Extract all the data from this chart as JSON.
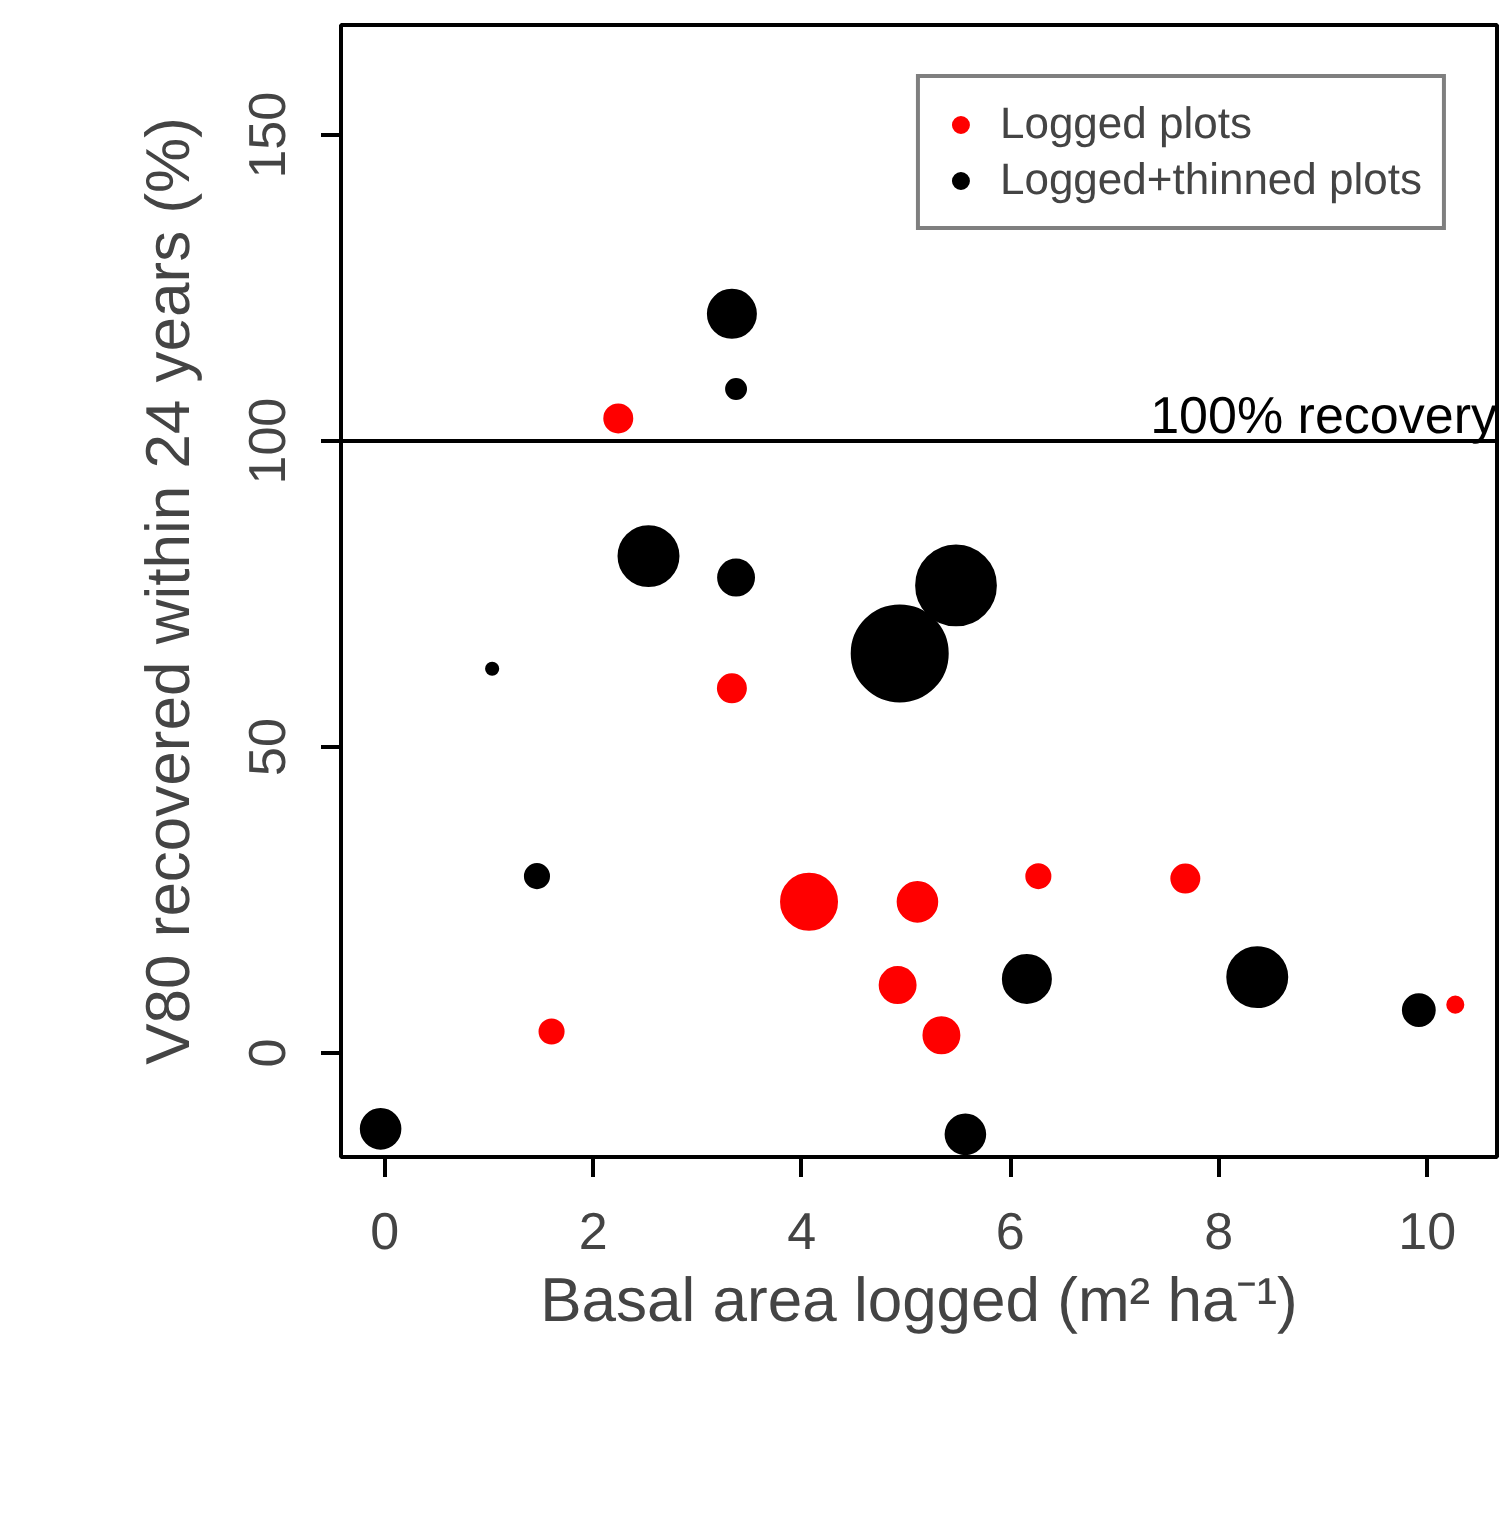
{
  "chart_data": {
    "type": "bubble",
    "xlabel": "Basal area logged (m² ha⁻¹)",
    "ylabel": "V80 recovered within 24 years (%)",
    "xlim": [
      -0.42,
      10.67
    ],
    "ylim": [
      -17,
      168
    ],
    "xticks": [
      0,
      2,
      4,
      6,
      8,
      10
    ],
    "yticks": [
      0,
      50,
      100,
      150
    ],
    "grid": false,
    "legend": "top right",
    "marker": "circle",
    "ref_lines": [
      {
        "axis": "y",
        "value": 100,
        "label": "100% recovery",
        "color": "#000000"
      }
    ],
    "series": [
      {
        "name": "Logged plots",
        "color": "#ff0000",
        "x": [
          2.24,
          3.33,
          1.6,
          4.07,
          5.11,
          4.92,
          5.34,
          6.27,
          7.68,
          10.27
        ],
        "values": [
          103.7,
          59.6,
          3.5,
          24.7,
          24.7,
          11.1,
          2.9,
          28.9,
          28.5,
          7.9
        ],
        "sizes": [
          0.085,
          0.085,
          0.063,
          0.34,
          0.17,
          0.14,
          0.14,
          0.063,
          0.085,
          0.028
        ]
      },
      {
        "name": "Logged+thinned plots",
        "color": "#000000",
        "x": [
          3.33,
          3.37,
          2.53,
          3.37,
          5.48,
          4.94,
          1.03,
          1.46,
          6.16,
          8.37,
          9.92,
          -0.04,
          5.57
        ],
        "values": [
          120.8,
          108.5,
          81.2,
          77.7,
          76.4,
          65.3,
          62.8,
          28.9,
          12.1,
          12.4,
          7.0,
          -12.4,
          -13.3
        ],
        "sizes": [
          0.25,
          0.043,
          0.39,
          0.14,
          0.69,
          1,
          0.016,
          0.063,
          0.25,
          0.39,
          0.11,
          0.17,
          0.17
        ]
      }
    ]
  }
}
